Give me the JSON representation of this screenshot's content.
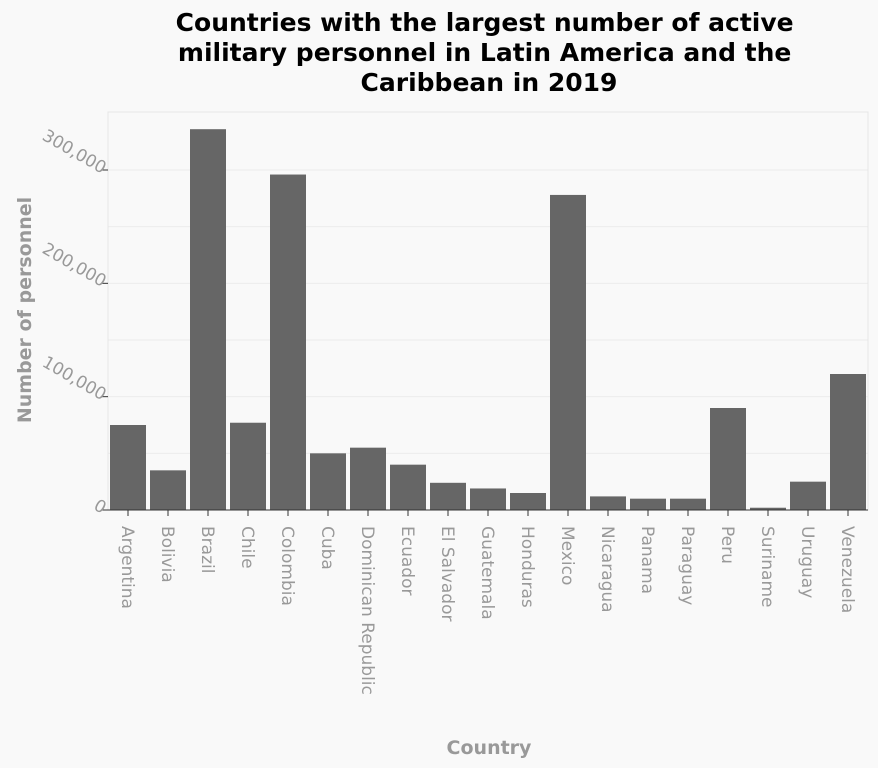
{
  "chart_data": {
    "type": "bar",
    "title_lines": [
      "Countries with the largest number of active",
      "military personnel in Latin America and the",
      "Caribbean in 2019"
    ],
    "xlabel": "Country",
    "ylabel": "Number of personnel",
    "categories": [
      "Argentina",
      "Bolivia",
      "Brazil",
      "Chile",
      "Colombia",
      "Cuba",
      "Dominican Republic",
      "Ecuador",
      "El Salvador",
      "Guatemala",
      "Honduras",
      "Mexico",
      "Nicaragua",
      "Panama",
      "Paraguay",
      "Peru",
      "Suriname",
      "Uruguay",
      "Venezuela"
    ],
    "values": [
      75000,
      35000,
      336000,
      77000,
      296000,
      50000,
      55000,
      40000,
      24000,
      19000,
      15000,
      278000,
      12000,
      10000,
      10000,
      90000,
      2000,
      25000,
      120000
    ],
    "yticks": [
      0,
      100000,
      200000,
      300000
    ],
    "ytick_labels": [
      "0",
      "100,000",
      "200,000",
      "300,000"
    ],
    "ylim": [
      0,
      350000
    ],
    "grid": true,
    "colors": {
      "bar": "#666666",
      "background": "#f9f9f9",
      "text_muted": "#999999"
    }
  }
}
